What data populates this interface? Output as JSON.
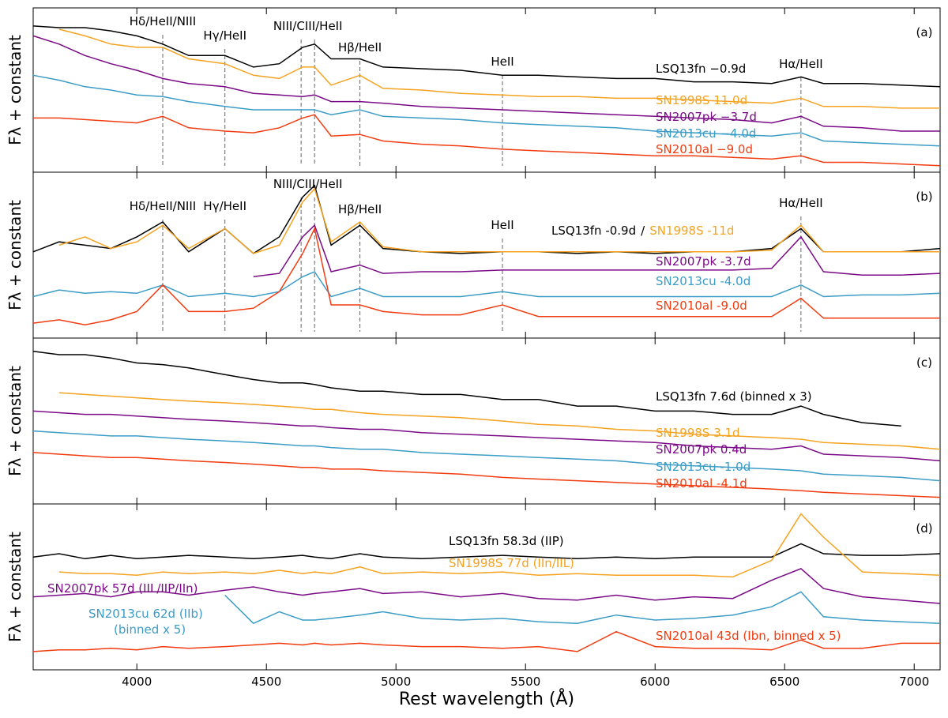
{
  "chart_data": [
    {
      "type": "line",
      "panel_label": "(a)",
      "ylabel": "Fλ + constant",
      "xlim": [
        3600,
        7100
      ],
      "xticks": [
        4000,
        4500,
        5000,
        5500,
        6000,
        6500,
        7000
      ],
      "ylim": [
        0,
        100
      ],
      "x": [
        3600,
        3700,
        3800,
        3900,
        4000,
        4100,
        4200,
        4340,
        4450,
        4550,
        4640,
        4686,
        4750,
        4861,
        4950,
        5100,
        5250,
        5411,
        5550,
        5700,
        5850,
        6000,
        6150,
        6300,
        6450,
        6563,
        6650,
        6800,
        6950,
        7100
      ],
      "lines": [
        {
          "label": "Hδ/HeII/NIII",
          "x": [
            4100
          ]
        },
        {
          "label": "Hγ/HeII",
          "x": [
            4340
          ]
        },
        {
          "label": "NIII/CIII/HeII",
          "x": [
            4634,
            4686
          ]
        },
        {
          "label": "Hβ/HeII",
          "x": [
            4861
          ]
        },
        {
          "label": "HeII",
          "x": [
            5411
          ]
        },
        {
          "label": "Hα/HeII",
          "x": [
            6563
          ]
        }
      ],
      "series": [
        {
          "name": "LSQ13fn −0.9d",
          "color": "#000000",
          "values": [
            89,
            88,
            88,
            86,
            83,
            78,
            71,
            71,
            64,
            66,
            76,
            78,
            69,
            69,
            64,
            63,
            62,
            59,
            59,
            58,
            57,
            57,
            55,
            55,
            54,
            58,
            54,
            54,
            53,
            52
          ]
        },
        {
          "name": "SN1998S 11.0d",
          "color": "#f5a320",
          "values": [
            null,
            87,
            83,
            78,
            76,
            76,
            69,
            66,
            59,
            57,
            64,
            64,
            53,
            59,
            51,
            50,
            48,
            47,
            46,
            46,
            45,
            45,
            44,
            43,
            42,
            45,
            40,
            40,
            39,
            39
          ]
        },
        {
          "name": "SN2007pk −3.7d",
          "color": "#7a0a86",
          "values": [
            83,
            78,
            71,
            66,
            62,
            57,
            54,
            52,
            48,
            47,
            46,
            47,
            43,
            43,
            42,
            40,
            39,
            38,
            37,
            36,
            35,
            34,
            33,
            32,
            30,
            34,
            28,
            27,
            25,
            25
          ]
        },
        {
          "name": "SN2013cu −4.0d",
          "color": "#3b9cc6",
          "values": [
            59,
            56,
            52,
            50,
            47,
            46,
            43,
            40,
            38,
            38,
            38,
            38,
            35,
            38,
            34,
            33,
            32,
            30,
            29,
            28,
            27,
            25,
            24,
            23,
            22,
            24,
            19,
            18,
            17,
            16
          ]
        },
        {
          "name": "SN2010al −9.0d",
          "color": "#f23c10",
          "values": [
            33,
            33,
            32,
            31,
            30,
            34,
            27,
            25,
            24,
            27,
            33,
            35,
            22,
            23,
            19,
            17,
            16,
            14,
            13,
            12,
            11,
            10,
            10,
            9,
            8,
            10,
            6,
            6,
            5,
            4
          ]
        }
      ]
    },
    {
      "type": "line",
      "panel_label": "(b)",
      "ylabel": "Fλ + constant",
      "label_separator": "/",
      "xlim": [
        3600,
        7100
      ],
      "xticks": [
        4000,
        4500,
        5000,
        5500,
        6000,
        6500,
        7000
      ],
      "ylim": [
        0,
        100
      ],
      "x": [
        3600,
        3700,
        3800,
        3900,
        4000,
        4100,
        4200,
        4340,
        4450,
        4550,
        4640,
        4686,
        4750,
        4861,
        4950,
        5100,
        5250,
        5411,
        5550,
        5700,
        5850,
        6000,
        6150,
        6300,
        6450,
        6563,
        6650,
        6800,
        6950,
        7100
      ],
      "lines": [
        {
          "label": "Hδ/HeII/NIII",
          "x": [
            4100
          ]
        },
        {
          "label": "Hγ/HeII",
          "x": [
            4340
          ]
        },
        {
          "label": "NIII/CIII/HeII",
          "x": [
            4634,
            4686
          ]
        },
        {
          "label": "Hβ/HeII",
          "x": [
            4861
          ]
        },
        {
          "label": "HeII",
          "x": [
            5411
          ]
        },
        {
          "label": "Hα/HeII",
          "x": [
            6563
          ]
        }
      ],
      "series": [
        {
          "name": "LSQ13fn -0.9d",
          "color": "#000000",
          "values": [
            52,
            58,
            56,
            54,
            61,
            70,
            52,
            66,
            51,
            61,
            85,
            92,
            56,
            68,
            54,
            52,
            51,
            52,
            52,
            51,
            52,
            51,
            52,
            52,
            54,
            66,
            52,
            52,
            52,
            54
          ]
        },
        {
          "name": "SN1998S -11d",
          "color": "#f5a320",
          "values": [
            null,
            56,
            61,
            54,
            58,
            68,
            54,
            66,
            51,
            56,
            82,
            90,
            58,
            70,
            55,
            52,
            52,
            52,
            52,
            52,
            52,
            52,
            52,
            52,
            53,
            68,
            52,
            52,
            52,
            52
          ]
        },
        {
          "name": "SN2007pk -3.7d",
          "color": "#7a0a86",
          "values": [
            null,
            null,
            null,
            null,
            null,
            null,
            null,
            null,
            37,
            39,
            61,
            68,
            40,
            44,
            39,
            40,
            40,
            41,
            41,
            41,
            41,
            41,
            41,
            41,
            42,
            61,
            40,
            38,
            38,
            39
          ]
        },
        {
          "name": "SN2013cu -4.0d",
          "color": "#3b9cc6",
          "values": [
            25,
            29,
            27,
            28,
            27,
            32,
            25,
            27,
            25,
            28,
            37,
            40,
            25,
            30,
            25,
            25,
            25,
            28,
            25,
            25,
            25,
            25,
            25,
            25,
            25,
            32,
            25,
            26,
            26,
            27
          ]
        },
        {
          "name": "SN2010al -9.0d",
          "color": "#f23c10",
          "values": [
            9,
            11,
            8,
            11,
            16,
            32,
            16,
            16,
            18,
            28,
            51,
            66,
            20,
            20,
            16,
            14,
            14,
            20,
            13,
            13,
            13,
            13,
            13,
            13,
            13,
            24,
            12,
            12,
            12,
            12
          ]
        }
      ]
    },
    {
      "type": "line",
      "panel_label": "(c)",
      "ylabel": "Fλ + constant",
      "xlim": [
        3600,
        7100
      ],
      "xticks": [
        4000,
        4500,
        5000,
        5500,
        6000,
        6500,
        7000
      ],
      "ylim": [
        0,
        100
      ],
      "x": [
        3600,
        3700,
        3800,
        3900,
        4000,
        4100,
        4200,
        4340,
        4450,
        4550,
        4640,
        4686,
        4750,
        4861,
        4950,
        5100,
        5250,
        5411,
        5550,
        5700,
        5850,
        6000,
        6150,
        6300,
        6450,
        6563,
        6650,
        6800,
        6950,
        7100
      ],
      "series": [
        {
          "name": "LSQ13fn 7.6d (binned x 3)",
          "color": "#000000",
          "values": [
            92,
            90,
            90,
            88,
            85,
            84,
            82,
            78,
            75,
            73,
            73,
            72,
            70,
            68,
            68,
            66,
            66,
            63,
            63,
            59,
            59,
            56,
            56,
            54,
            54,
            59,
            54,
            49,
            47,
            null
          ]
        },
        {
          "name": "SN1998S 3.1d",
          "color": "#f5a320",
          "values": [
            null,
            67,
            66,
            65,
            64,
            63,
            62,
            61,
            60,
            59,
            58,
            57,
            57,
            55,
            54,
            53,
            52,
            50,
            48,
            47,
            45,
            44,
            42,
            41,
            40,
            39,
            37,
            36,
            35,
            33
          ]
        },
        {
          "name": "SN2007pk 0.4d",
          "color": "#7a0a86",
          "values": [
            56,
            55,
            54,
            54,
            53,
            52,
            51,
            50,
            49,
            48,
            47,
            47,
            46,
            45,
            45,
            43,
            42,
            41,
            40,
            39,
            38,
            37,
            35,
            34,
            33,
            35,
            30,
            29,
            28,
            26
          ]
        },
        {
          "name": "SN2013cu -1.0d",
          "color": "#3b9cc6",
          "values": [
            44,
            43,
            42,
            41,
            41,
            40,
            39,
            38,
            37,
            36,
            35,
            35,
            34,
            33,
            33,
            31,
            30,
            29,
            28,
            27,
            26,
            24,
            23,
            22,
            21,
            20,
            18,
            17,
            16,
            14
          ]
        },
        {
          "name": "SN2010al -4.1d",
          "color": "#f23c10",
          "values": [
            31,
            30,
            29,
            28,
            28,
            27,
            26,
            25,
            24,
            23,
            22,
            22,
            21,
            21,
            20,
            19,
            18,
            16,
            15,
            14,
            13,
            12,
            11,
            10,
            9,
            8,
            7,
            6,
            5,
            4
          ]
        }
      ]
    },
    {
      "type": "line",
      "panel_label": "(d)",
      "ylabel": "Fλ + constant",
      "xlabel": "Rest wavelength (Å)",
      "xlim": [
        3600,
        7100
      ],
      "xticks": [
        4000,
        4500,
        5000,
        5500,
        6000,
        6500,
        7000
      ],
      "ylim": [
        0,
        100
      ],
      "x": [
        3600,
        3700,
        3800,
        3900,
        4000,
        4100,
        4200,
        4340,
        4450,
        4550,
        4640,
        4686,
        4750,
        4861,
        4950,
        5100,
        5250,
        5411,
        5550,
        5700,
        5850,
        6000,
        6150,
        6300,
        6450,
        6563,
        6650,
        6800,
        6950,
        7100
      ],
      "series": [
        {
          "name": "LSQ13fn 58.3d (IIP)",
          "color": "#000000",
          "values": [
            68,
            70,
            67,
            69,
            67,
            68,
            69,
            68,
            67,
            68,
            69,
            68,
            67,
            70,
            68,
            67,
            68,
            69,
            68,
            67,
            68,
            67,
            68,
            68,
            68,
            76,
            70,
            69,
            69,
            70
          ]
        },
        {
          "name": "SN1998S 77d (IIn/IIL)",
          "color": "#f5a320",
          "values": [
            null,
            59,
            58,
            58,
            57,
            59,
            58,
            59,
            58,
            60,
            58,
            59,
            58,
            62,
            58,
            59,
            58,
            59,
            57,
            58,
            57,
            57,
            57,
            56,
            66,
            94,
            80,
            59,
            58,
            57
          ]
        },
        {
          "name": "SN2007pk 57d (IIL/IIP/IIn)",
          "color": "#7a0a86",
          "values": [
            44,
            45,
            46,
            44,
            47,
            47,
            45,
            48,
            50,
            47,
            45,
            46,
            47,
            49,
            46,
            47,
            44,
            46,
            43,
            42,
            45,
            42,
            44,
            43,
            54,
            61,
            49,
            44,
            42,
            40
          ]
        },
        {
          "name": "SN2013cu 62d (IIb)",
          "note": "(binned x 5)",
          "color": "#3b9cc6",
          "values": [
            null,
            null,
            null,
            null,
            null,
            null,
            null,
            45,
            28,
            35,
            30,
            30,
            31,
            33,
            35,
            31,
            30,
            31,
            29,
            28,
            33,
            30,
            31,
            33,
            38,
            47,
            32,
            30,
            29,
            28
          ]
        },
        {
          "name": "SN2010al 43d (Ibn, binned x 5)",
          "color": "#f23c10",
          "values": [
            11,
            12,
            12,
            13,
            12,
            14,
            13,
            14,
            15,
            16,
            15,
            16,
            15,
            16,
            15,
            14,
            14,
            13,
            14,
            11,
            23,
            14,
            13,
            13,
            12,
            18,
            13,
            13,
            16,
            16
          ]
        }
      ]
    }
  ]
}
